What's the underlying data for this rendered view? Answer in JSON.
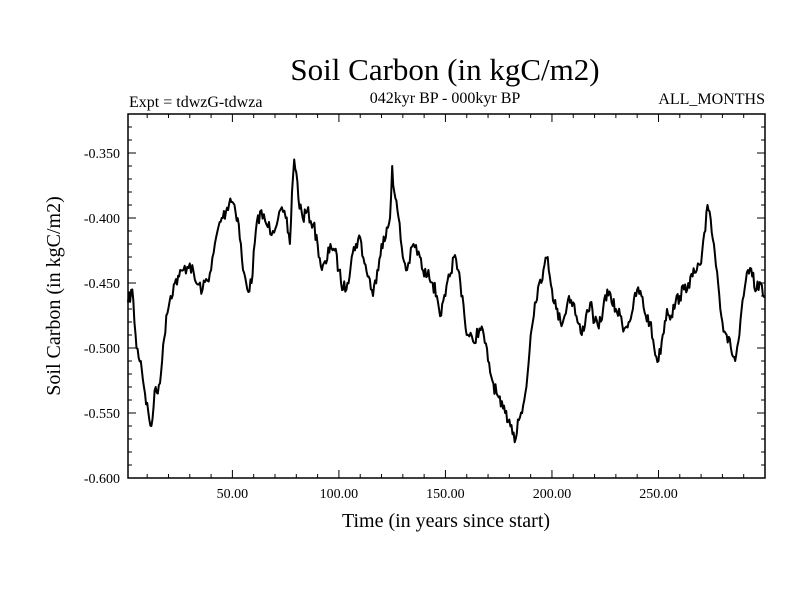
{
  "chart_data": {
    "type": "line",
    "title": "Soil Carbon (in kgC/m2)",
    "subtitle_left": "Expt = tdwzG-tdwza",
    "subtitle_center": "042kyr BP - 000kyr BP",
    "subtitle_right": "ALL_MONTHS",
    "xlabel": "Time (in years since start)",
    "ylabel": "Soil Carbon (in kgC/m2)",
    "xlim": [
      1,
      300
    ],
    "ylim": [
      -0.6,
      -0.32
    ],
    "xticks": [
      50,
      100,
      150,
      200,
      250
    ],
    "xtick_labels": [
      "50.00",
      "100.00",
      "150.00",
      "200.00",
      "250.00"
    ],
    "yticks": [
      -0.6,
      -0.55,
      -0.5,
      -0.45,
      -0.4,
      -0.35
    ],
    "ytick_labels": [
      "-0.600",
      "-0.550",
      "-0.500",
      "-0.450",
      "-0.400",
      "-0.350"
    ],
    "grid": false,
    "line_color": "#000000",
    "series": [
      {
        "x": [
          1,
          3,
          5,
          7,
          9,
          11,
          12,
          13,
          14,
          15,
          17,
          19,
          21,
          23,
          25,
          27,
          30,
          33,
          36,
          40,
          43,
          45,
          47,
          49,
          51,
          53,
          55,
          57,
          59,
          61,
          63,
          66,
          69,
          72,
          75,
          77,
          78,
          79,
          80,
          81,
          83,
          85,
          88,
          90,
          92,
          94,
          96,
          98,
          100,
          102,
          104,
          106,
          108,
          110,
          112,
          114,
          116,
          118,
          120,
          122,
          124,
          125,
          126,
          128,
          130,
          132,
          135,
          138,
          140,
          142,
          144,
          146,
          148,
          150,
          152,
          154,
          156,
          158,
          160,
          163,
          166,
          168,
          170,
          172,
          174,
          176,
          178,
          180,
          182,
          183,
          184,
          186,
          188,
          190,
          192,
          194,
          196,
          198,
          200,
          202,
          204,
          206,
          208,
          210,
          212,
          214,
          216,
          218,
          220,
          222,
          224,
          226,
          228,
          230,
          232,
          234,
          236,
          238,
          240,
          242,
          244,
          246,
          248,
          250,
          252,
          254,
          256,
          258,
          260,
          262,
          264,
          266,
          268,
          270,
          272,
          273,
          274,
          276,
          278,
          280,
          282,
          284,
          286,
          288,
          290,
          292,
          294,
          296,
          298,
          300
        ],
        "y": [
          -0.465,
          -0.455,
          -0.5,
          -0.51,
          -0.535,
          -0.555,
          -0.56,
          -0.545,
          -0.53,
          -0.535,
          -0.51,
          -0.475,
          -0.46,
          -0.45,
          -0.445,
          -0.44,
          -0.435,
          -0.45,
          -0.455,
          -0.44,
          -0.41,
          -0.4,
          -0.395,
          -0.385,
          -0.39,
          -0.405,
          -0.44,
          -0.455,
          -0.45,
          -0.41,
          -0.395,
          -0.405,
          -0.41,
          -0.395,
          -0.4,
          -0.42,
          -0.38,
          -0.355,
          -0.365,
          -0.385,
          -0.4,
          -0.395,
          -0.405,
          -0.42,
          -0.44,
          -0.435,
          -0.42,
          -0.425,
          -0.44,
          -0.455,
          -0.45,
          -0.43,
          -0.42,
          -0.415,
          -0.435,
          -0.445,
          -0.46,
          -0.44,
          -0.42,
          -0.415,
          -0.4,
          -0.36,
          -0.38,
          -0.4,
          -0.43,
          -0.44,
          -0.42,
          -0.43,
          -0.445,
          -0.44,
          -0.45,
          -0.46,
          -0.475,
          -0.46,
          -0.445,
          -0.43,
          -0.44,
          -0.46,
          -0.49,
          -0.495,
          -0.485,
          -0.49,
          -0.51,
          -0.525,
          -0.535,
          -0.545,
          -0.55,
          -0.555,
          -0.565,
          -0.57,
          -0.555,
          -0.55,
          -0.53,
          -0.49,
          -0.465,
          -0.45,
          -0.44,
          -0.43,
          -0.455,
          -0.47,
          -0.48,
          -0.475,
          -0.46,
          -0.465,
          -0.48,
          -0.49,
          -0.475,
          -0.465,
          -0.48,
          -0.485,
          -0.47,
          -0.455,
          -0.465,
          -0.47,
          -0.475,
          -0.485,
          -0.48,
          -0.47,
          -0.455,
          -0.46,
          -0.475,
          -0.48,
          -0.5,
          -0.51,
          -0.49,
          -0.47,
          -0.475,
          -0.465,
          -0.46,
          -0.455,
          -0.45,
          -0.445,
          -0.44,
          -0.435,
          -0.41,
          -0.39,
          -0.395,
          -0.42,
          -0.45,
          -0.48,
          -0.49,
          -0.5,
          -0.51,
          -0.49,
          -0.46,
          -0.44,
          -0.445,
          -0.455,
          -0.45,
          -0.46
        ]
      }
    ]
  }
}
